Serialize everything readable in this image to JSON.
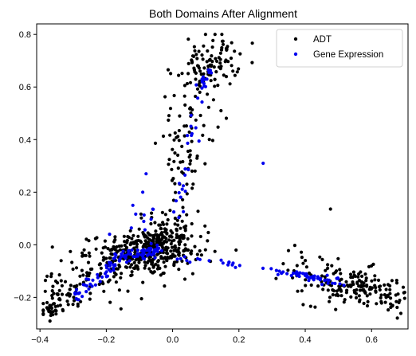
{
  "chart_data": {
    "type": "scatter",
    "title": "Both Domains After Alignment",
    "xlabel": "",
    "ylabel": "",
    "xlim": [
      -0.41,
      0.71
    ],
    "ylim": [
      -0.32,
      0.84
    ],
    "xticks": [
      "−0.4",
      "−0.2",
      "0.0",
      "0.2",
      "0.4",
      "0.6"
    ],
    "xtick_values": [
      -0.4,
      -0.2,
      0.0,
      0.2,
      0.4,
      0.6
    ],
    "yticks": [
      "−0.2",
      "0.0",
      "0.2",
      "0.4",
      "0.6",
      "0.8"
    ],
    "ytick_values": [
      -0.2,
      0.0,
      0.2,
      0.4,
      0.6,
      0.8
    ],
    "legend": {
      "placement": "top-right"
    },
    "series": [
      {
        "name": "ADT",
        "color": "#000000",
        "clusters": [
          {
            "n": 260,
            "cx": -0.08,
            "cy": -0.03,
            "sx": 0.07,
            "sy": 0.045
          },
          {
            "n": 110,
            "cx": -0.02,
            "cy": 0.03,
            "sx": 0.05,
            "sy": 0.05
          },
          {
            "n": 90,
            "cx": -0.22,
            "cy": -0.1,
            "sx": 0.07,
            "sy": 0.05
          },
          {
            "n": 40,
            "cx": -0.32,
            "cy": -0.2,
            "sx": 0.04,
            "sy": 0.03
          },
          {
            "n": 25,
            "cx": -0.37,
            "cy": -0.25,
            "sx": 0.02,
            "sy": 0.015
          },
          {
            "n": 90,
            "cx": 0.12,
            "cy": 0.7,
            "sx": 0.04,
            "sy": 0.05
          },
          {
            "n": 60,
            "cx": 0.06,
            "cy": 0.5,
            "sx": 0.035,
            "sy": 0.1
          },
          {
            "n": 40,
            "cx": 0.02,
            "cy": 0.25,
            "sx": 0.03,
            "sy": 0.12
          },
          {
            "n": 130,
            "cx": 0.54,
            "cy": -0.16,
            "sx": 0.07,
            "sy": 0.035
          },
          {
            "n": 30,
            "cx": 0.65,
            "cy": -0.2,
            "sx": 0.03,
            "sy": 0.03
          },
          {
            "n": 25,
            "cx": 0.41,
            "cy": -0.07,
            "sx": 0.04,
            "sy": 0.06
          },
          {
            "n": 15,
            "cx": 0.08,
            "cy": -0.02,
            "sx": 0.06,
            "sy": 0.05
          }
        ]
      },
      {
        "name": "Gene Expression",
        "color": "#0000ee",
        "segments": [
          {
            "n": 70,
            "x0": -0.17,
            "y0": -0.05,
            "x1": -0.04,
            "y1": -0.02,
            "jitter": 0.012
          },
          {
            "n": 40,
            "x0": -0.3,
            "y0": -0.2,
            "x1": -0.17,
            "y1": -0.07,
            "jitter": 0.01
          },
          {
            "n": 25,
            "x0": 0.0,
            "y0": 0.05,
            "x1": 0.1,
            "y1": 0.65,
            "jitter": 0.01
          },
          {
            "n": 15,
            "x0": 0.08,
            "y0": 0.6,
            "x1": 0.12,
            "y1": 0.69,
            "jitter": 0.008
          },
          {
            "n": 22,
            "x0": 0.0,
            "y0": -0.05,
            "x1": 0.32,
            "y1": -0.1,
            "jitter": 0.008
          },
          {
            "n": 45,
            "x0": 0.32,
            "y0": -0.1,
            "x1": 0.51,
            "y1": -0.145,
            "jitter": 0.008
          },
          {
            "n": 8,
            "x0": -0.13,
            "y0": 0.02,
            "x1": -0.06,
            "y1": 0.15,
            "jitter": 0.02
          }
        ],
        "points": [
          [
            0.273,
            0.31
          ],
          [
            -0.08,
            0.27
          ],
          [
            -0.09,
            0.2
          ],
          [
            -0.12,
            0.15
          ],
          [
            -0.19,
            0.04
          ],
          [
            -0.26,
            -0.13
          ]
        ]
      }
    ]
  }
}
